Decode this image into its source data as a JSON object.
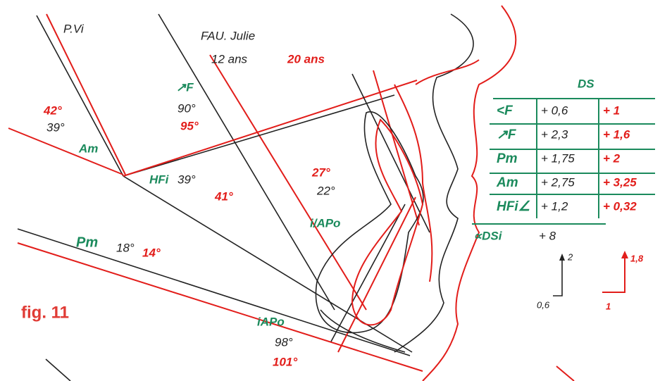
{
  "figure": {
    "label": "fig. 11",
    "patient": {
      "name": "FAU. Julie",
      "age_1": "12 ans",
      "age_2": "20 ans"
    },
    "plane": "P.Vi",
    "angles": {
      "am": {
        "name": "Am",
        "v1": "39°",
        "v2": "42°"
      },
      "f": {
        "name": "↗F",
        "v1": "90°",
        "v2": "95°"
      },
      "hfi": {
        "name": "HFi",
        "v1": "39°",
        "v2": "41°"
      },
      "iapo_upper": {
        "name": "i/APo",
        "v1": "22°",
        "v2": "27°"
      },
      "pm": {
        "name": "Pm",
        "v1": "18°",
        "v2": "14°"
      },
      "iapo_lower": {
        "name": "iAPo",
        "v1": "98°",
        "v2": "101°"
      }
    },
    "table": {
      "title": "DS",
      "rows": [
        [
          "<F",
          "+ 0,6",
          "+ 1"
        ],
        [
          "↗F",
          "+ 2,3",
          "+ 1,6"
        ],
        [
          "Pm",
          "+ 1,75",
          "+ 2"
        ],
        [
          "Am",
          "+ 2,75",
          "+ 3,25"
        ],
        [
          "HFi∠",
          "+ 1,2",
          "+ 0,32"
        ]
      ],
      "total_label": "∝DSi",
      "total_value": "+ 8"
    },
    "vectors": {
      "black_v": "2",
      "black_h": "0,6",
      "red_v": "1,8",
      "red_h": "1"
    }
  }
}
